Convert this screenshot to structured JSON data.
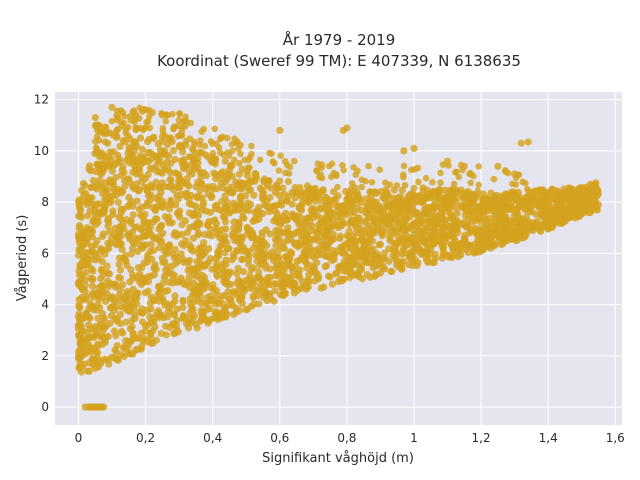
{
  "chart_data": {
    "type": "scatter",
    "title_line1": "År 1979 - 2019",
    "title_line2": "Koordinat (Sweref 99 TM): E 407339, N 6138635",
    "xlabel": "Signifikant våghöjd (m)",
    "ylabel": "Vågperiod (s)",
    "xlim": [
      -0.07,
      1.62
    ],
    "ylim": [
      -0.7,
      12.3
    ],
    "x_ticks": [
      0,
      0.2,
      0.4,
      0.6,
      0.8,
      1,
      1.2,
      1.4,
      1.6
    ],
    "x_tick_labels": [
      "0",
      "0,2",
      "0,4",
      "0,6",
      "0,8",
      "1",
      "1,2",
      "1,4",
      "1,6"
    ],
    "y_ticks": [
      0,
      2,
      4,
      6,
      8,
      10,
      12
    ],
    "y_tick_labels": [
      "0",
      "2",
      "4",
      "6",
      "8",
      "10",
      "12"
    ],
    "grid": true,
    "legend": "none",
    "colors": {
      "background": "#e5e5f0",
      "grid": "#ffffff",
      "marker": "#d4a21f"
    },
    "envelope": {
      "x": [
        0.0,
        0.02,
        0.05,
        0.1,
        0.15,
        0.2,
        0.3,
        0.4,
        0.5,
        0.6,
        0.7,
        0.8,
        0.9,
        1.0,
        1.1,
        1.2,
        1.3,
        1.4,
        1.5,
        1.55
      ],
      "y_min": [
        1.2,
        1.3,
        1.5,
        1.7,
        2.0,
        2.3,
        2.8,
        3.3,
        3.8,
        4.2,
        4.55,
        4.85,
        5.15,
        5.45,
        5.75,
        6.05,
        6.45,
        6.95,
        7.45,
        7.7
      ],
      "y_max": [
        8.0,
        9.0,
        10.0,
        10.6,
        10.7,
        10.7,
        10.5,
        9.9,
        9.3,
        8.9,
        8.6,
        8.5,
        8.5,
        8.5,
        8.5,
        8.4,
        8.4,
        8.5,
        8.6,
        8.8
      ]
    },
    "outliers": [
      [
        0.1,
        11.7
      ],
      [
        0.2,
        11.6
      ],
      [
        0.22,
        11.5
      ],
      [
        0.05,
        11.3
      ],
      [
        0.25,
        11.4
      ],
      [
        0.3,
        11.2
      ],
      [
        0.19,
        11.55
      ],
      [
        0.79,
        10.8
      ],
      [
        0.8,
        10.9
      ],
      [
        0.97,
        10.0
      ],
      [
        1.0,
        10.1
      ],
      [
        1.1,
        9.6
      ],
      [
        1.15,
        9.4
      ],
      [
        1.25,
        9.4
      ],
      [
        1.32,
        10.3
      ],
      [
        1.34,
        10.35
      ],
      [
        1.3,
        9.1
      ],
      [
        0.6,
        10.8
      ]
    ],
    "zero_points": [
      [
        0.02,
        0
      ],
      [
        0.03,
        0
      ],
      [
        0.035,
        0
      ],
      [
        0.04,
        0
      ],
      [
        0.045,
        0
      ],
      [
        0.05,
        0
      ],
      [
        0.055,
        0
      ],
      [
        0.06,
        0
      ],
      [
        0.065,
        0
      ],
      [
        0.07,
        0
      ],
      [
        0.075,
        0
      ]
    ],
    "sample_size": 3200
  }
}
